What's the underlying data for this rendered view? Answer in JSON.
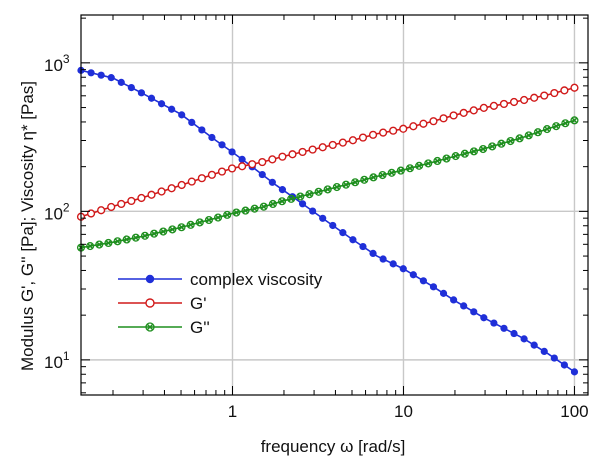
{
  "chart_data": {
    "type": "line",
    "xlabel": "frequency ω [rad/s]",
    "ylabel": "Modulus G', G'' [Pa]; Viscosity η* [Pas]",
    "xscale": "log",
    "yscale": "log",
    "xlim": [
      0.13,
      120
    ],
    "ylim": [
      5.8,
      2100
    ],
    "grid": true,
    "legend_position": "lower-left",
    "x_ticks": [
      {
        "value": 1,
        "label": "1"
      },
      {
        "value": 10,
        "label": "10"
      },
      {
        "value": 100,
        "label": "100"
      }
    ],
    "y_ticks": [
      {
        "value": 10,
        "base": "10",
        "exp": "1"
      },
      {
        "value": 100,
        "base": "10",
        "exp": "2"
      },
      {
        "value": 1000,
        "base": "10",
        "exp": "3"
      }
    ],
    "series": [
      {
        "name": "complex viscosity",
        "color": "#1f2fd8",
        "marker": "filled-circle",
        "x": [
          0.13,
          0.2,
          0.3,
          0.5,
          0.8,
          1.0,
          1.3,
          1.8,
          2.5,
          3.5,
          5.0,
          7.0,
          10,
          15,
          20,
          30,
          50,
          70,
          100
        ],
        "y": [
          890,
          790,
          620,
          450,
          300,
          250,
          200,
          150,
          115,
          87,
          65,
          50,
          41,
          31,
          25,
          19,
          14,
          11,
          8.3
        ]
      },
      {
        "name": "G'",
        "color": "#d11a1a",
        "marker": "open-circle",
        "x": [
          0.13,
          0.2,
          0.3,
          0.5,
          0.8,
          1.0,
          1.5,
          2.0,
          3.0,
          5.0,
          7.0,
          10,
          15,
          20,
          30,
          50,
          70,
          100
        ],
        "y": [
          92,
          108,
          124,
          150,
          180,
          195,
          215,
          235,
          262,
          300,
          333,
          360,
          405,
          445,
          500,
          560,
          610,
          680
        ]
      },
      {
        "name": "G''",
        "color": "#1f8f1f",
        "marker": "cross-circle",
        "x": [
          0.13,
          0.2,
          0.3,
          0.5,
          0.8,
          1.0,
          1.5,
          2.0,
          3.0,
          5.0,
          7.0,
          10,
          15,
          20,
          30,
          50,
          70,
          100
        ],
        "y": [
          57,
          62,
          68,
          78,
          90,
          97,
          107,
          118,
          133,
          155,
          172,
          190,
          215,
          235,
          265,
          315,
          360,
          410
        ]
      }
    ]
  }
}
